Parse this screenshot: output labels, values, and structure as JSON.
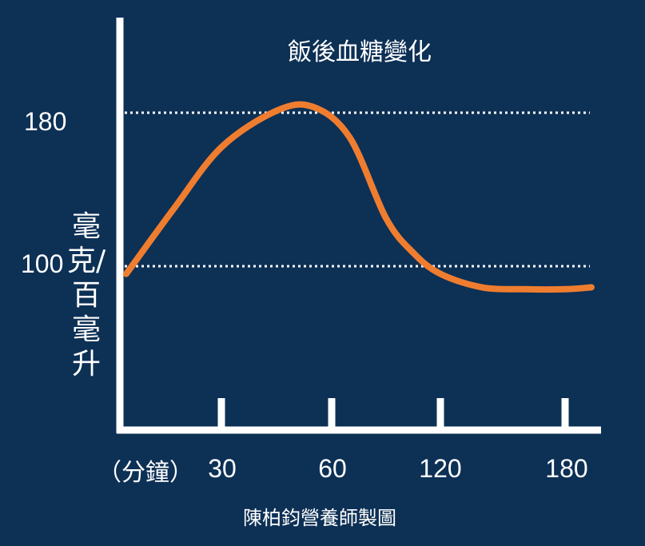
{
  "chart_data": {
    "type": "line",
    "title": "飯後血糖變化",
    "xlabel": "（分鐘）",
    "ylabel": "毫克/百毫升",
    "x_ticks": [
      "30",
      "60",
      "120",
      "180"
    ],
    "y_ticks": [
      "100",
      "180"
    ],
    "reference_lines": [
      100,
      180
    ],
    "series": [
      {
        "x": [
          0,
          15,
          30,
          45,
          55,
          70,
          90,
          105,
          120,
          140,
          160,
          180,
          190
        ],
        "y": [
          96,
          130,
          162,
          181,
          183,
          167,
          125,
          107,
          96,
          89,
          88,
          88,
          89
        ]
      }
    ]
  },
  "footer": {
    "credit": "陳柏鈞營養師製圖"
  },
  "colors": {
    "background": "#0d3055",
    "curve": "#ef7d2f",
    "axis": "#ffffff"
  }
}
